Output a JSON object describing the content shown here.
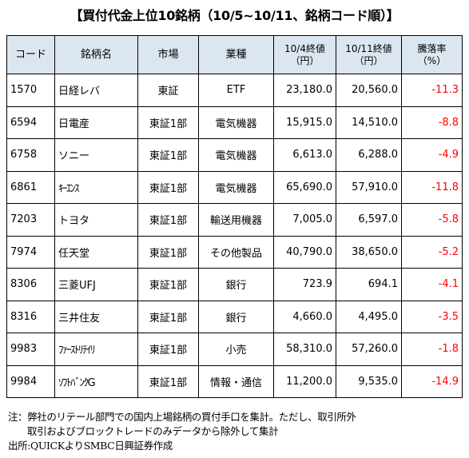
{
  "title": "【買付代金上位10銘柄（10/5~10/11、銘柄コード順）】",
  "table": {
    "headers": [
      {
        "line1": "コード",
        "line2": ""
      },
      {
        "line1": "銘柄名",
        "line2": ""
      },
      {
        "line1": "市場",
        "line2": ""
      },
      {
        "line1": "業種",
        "line2": ""
      },
      {
        "line1": "10/4終値",
        "line2": "（円）"
      },
      {
        "line1": "10/11終値",
        "line2": "（円）"
      },
      {
        "line1": "騰落率",
        "line2": "（%）"
      }
    ],
    "rows": [
      {
        "code": "1570",
        "name": "日経レバ",
        "market": "東証",
        "industry": "ETF",
        "close_1004": "23,180.0",
        "close_1011": "20,560.0",
        "change": "-11.3"
      },
      {
        "code": "6594",
        "name": "日電産",
        "market": "東証1部",
        "industry": "電気機器",
        "close_1004": "15,915.0",
        "close_1011": "14,510.0",
        "change": "-8.8"
      },
      {
        "code": "6758",
        "name": "ソニー",
        "market": "東証1部",
        "industry": "電気機器",
        "close_1004": "6,613.0",
        "close_1011": "6,288.0",
        "change": "-4.9"
      },
      {
        "code": "6861",
        "name": "ｷｰｴﾝｽ",
        "market": "東証1部",
        "industry": "電気機器",
        "close_1004": "65,690.0",
        "close_1011": "57,910.0",
        "change": "-11.8"
      },
      {
        "code": "7203",
        "name": "トヨタ",
        "market": "東証1部",
        "industry": "輸送用機器",
        "close_1004": "7,005.0",
        "close_1011": "6,597.0",
        "change": "-5.8"
      },
      {
        "code": "7974",
        "name": "任天堂",
        "market": "東証1部",
        "industry": "その他製品",
        "close_1004": "40,790.0",
        "close_1011": "38,650.0",
        "change": "-5.2"
      },
      {
        "code": "8306",
        "name": "三菱UFJ",
        "market": "東証1部",
        "industry": "銀行",
        "close_1004": "723.9",
        "close_1011": "694.1",
        "change": "-4.1"
      },
      {
        "code": "8316",
        "name": "三井住友",
        "market": "東証1部",
        "industry": "銀行",
        "close_1004": "4,660.0",
        "close_1011": "4,495.0",
        "change": "-3.5"
      },
      {
        "code": "9983",
        "name": "ﾌｧｰｽﾄﾘﾃｲﾘ",
        "market": "東証1部",
        "industry": "小売",
        "close_1004": "58,310.0",
        "close_1011": "57,260.0",
        "change": "-1.8"
      },
      {
        "code": "9984",
        "name": "ｿﾌﾄﾊﾞﾝｸG",
        "market": "東証1部",
        "industry": "情報・通信",
        "close_1004": "11,200.0",
        "close_1011": "9,535.0",
        "change": "-14.9"
      }
    ]
  },
  "notes": {
    "line1": "注：弊社のリテール部門での国内上場銘柄の買付手口を集計。ただし、取引所外",
    "line2": "取引およびブロックトレードのみデータから除外して集計",
    "source": "出所:QUICKよりSMBC日興証券作成"
  },
  "colors": {
    "header_bg": "#dce6f1",
    "negative": "#ff0000"
  }
}
